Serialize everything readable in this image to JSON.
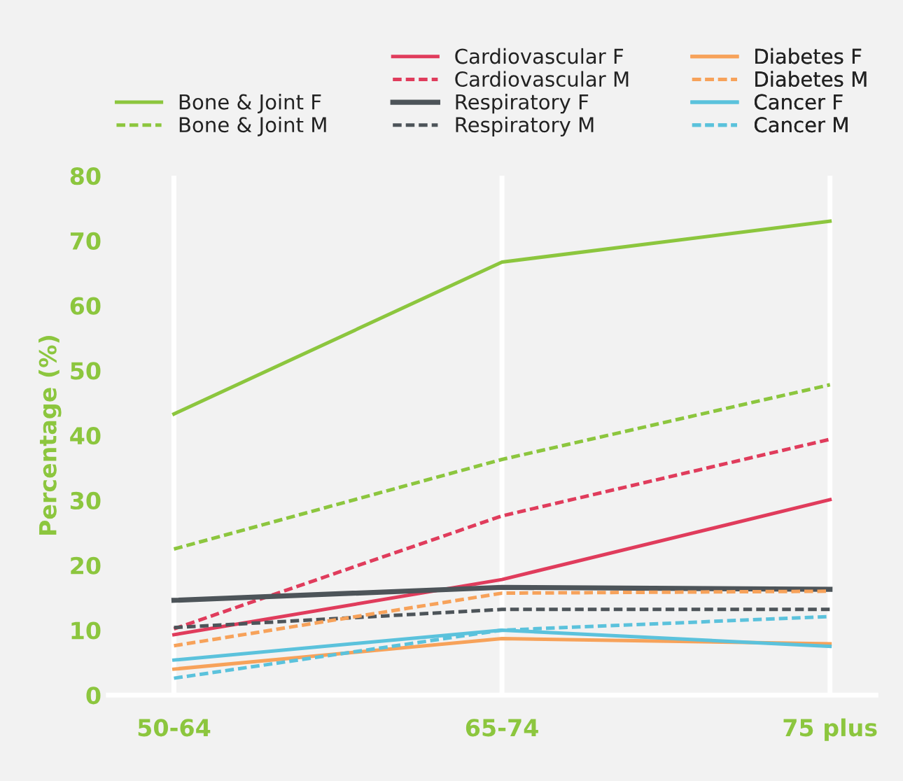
{
  "chart_data": {
    "type": "line",
    "ylabel": "Percentage (%)",
    "categories": [
      "50-64",
      "65-74",
      "75 plus"
    ],
    "ylim": [
      0,
      80
    ],
    "yticks": [
      0,
      10,
      20,
      30,
      40,
      50,
      60,
      70,
      80
    ],
    "grid": "x",
    "legend": "top",
    "line_style": "solid",
    "marker": "none",
    "series": [
      {
        "name": "Bone & Joint F",
        "color": "#8cc63e",
        "values": [
          43.3,
          66.7,
          73.0
        ]
      },
      {
        "name": "Bone & Joint M",
        "color": "#8cc63e",
        "line_style": "dashed",
        "values": [
          22.5,
          36.3,
          47.8
        ]
      },
      {
        "name": "Cardiovascular F",
        "color": "#e03c5c",
        "values": [
          9.3,
          17.8,
          30.1
        ]
      },
      {
        "name": "Cardiovascular M",
        "color": "#e03c5c",
        "line_style": "dashed",
        "values": [
          10.2,
          27.6,
          39.4
        ]
      },
      {
        "name": "Respiratory F",
        "color": "#4d5459",
        "values": [
          14.6,
          16.6,
          16.3
        ]
      },
      {
        "name": "Respiratory M",
        "color": "#4d5459",
        "line_style": "dashed",
        "values": [
          10.4,
          13.2,
          13.2
        ]
      },
      {
        "name": "Diabetes F",
        "color": "#f7a25a",
        "values": [
          4.0,
          8.7,
          7.9
        ]
      },
      {
        "name": "Diabetes M",
        "color": "#f7a25a",
        "line_style": "dashed",
        "values": [
          7.6,
          15.7,
          16.0
        ]
      },
      {
        "name": "Cancer F",
        "color": "#5bc2dc",
        "values": [
          5.4,
          10.0,
          7.5
        ]
      },
      {
        "name": "Cancer M",
        "color": "#5bc2dc",
        "line_style": "dashed",
        "values": [
          2.6,
          10.0,
          12.1
        ]
      }
    ]
  }
}
